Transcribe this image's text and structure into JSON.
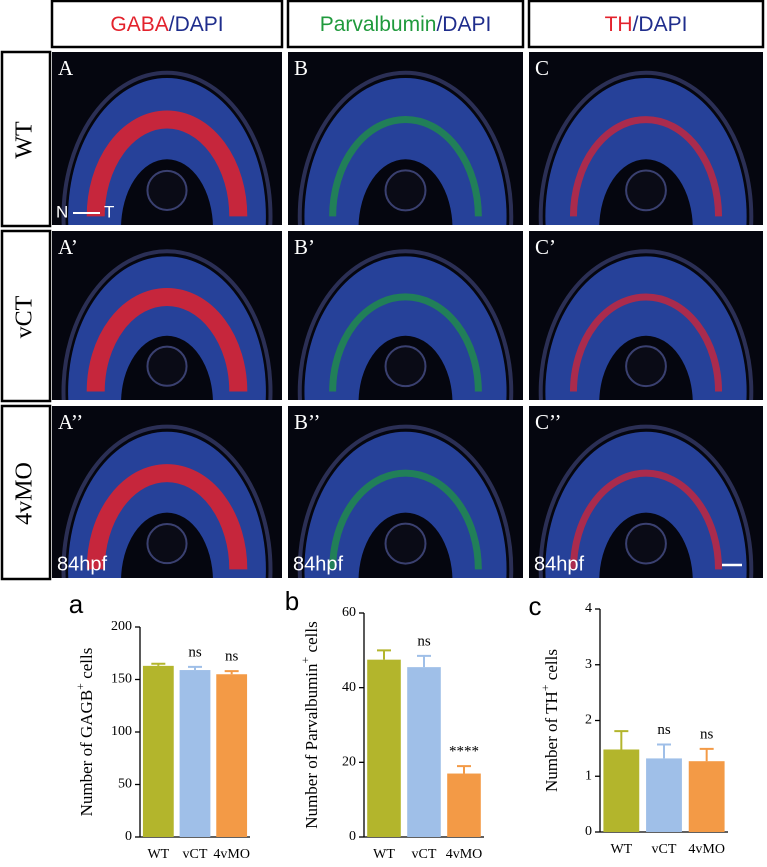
{
  "figure": {
    "column_headers": [
      [
        {
          "text": "GABA",
          "color": "#e3222c"
        },
        {
          "text": "/DAPI",
          "color": "#1f2d8c"
        }
      ],
      [
        {
          "text": "Parvalbumin",
          "color": "#1f9a3c"
        },
        {
          "text": "/DAPI",
          "color": "#1f2d8c"
        }
      ],
      [
        {
          "text": "TH",
          "color": "#e3222c"
        },
        {
          "text": "/DAPI",
          "color": "#1f2d8c"
        }
      ]
    ],
    "row_labels": [
      "WT",
      "vCT",
      "4vMO"
    ],
    "panel_labels": [
      [
        "A",
        "B",
        "C"
      ],
      [
        "A’",
        "B’",
        "C’"
      ],
      [
        "A’’",
        "B’’",
        "C’’"
      ]
    ],
    "orientation": [
      "N",
      "T"
    ],
    "stage_labels": [
      "84hpf",
      "84hpf",
      "84hpf"
    ]
  },
  "chart_data": [
    {
      "type": "bar",
      "label": "a",
      "ylabel": {
        "text": "Number of GAGB",
        "sup": "+",
        "after": " cells"
      },
      "categories": [
        "WT",
        "vCT",
        "4vMO"
      ],
      "values": [
        163,
        159,
        155
      ],
      "errors": [
        2,
        3,
        3
      ],
      "colors": [
        "#b3b52c",
        "#9fbfe8",
        "#f39a46"
      ],
      "annotations": [
        null,
        "ns",
        "ns"
      ],
      "ylim": [
        0,
        200
      ],
      "yticks": [
        0,
        50,
        100,
        150,
        200
      ]
    },
    {
      "type": "bar",
      "label": "b",
      "ylabel": {
        "text": "Number of Parvalbumin",
        "sup": "+",
        "after": " cells"
      },
      "categories": [
        "WT",
        "vCT",
        "4vMO"
      ],
      "values": [
        47.5,
        45.5,
        17
      ],
      "errors": [
        2.5,
        3,
        2
      ],
      "colors": [
        "#b3b52c",
        "#9fbfe8",
        "#f39a46"
      ],
      "annotations": [
        null,
        "ns",
        "****"
      ],
      "ylim": [
        0,
        60
      ],
      "yticks": [
        0,
        20,
        40,
        60
      ]
    },
    {
      "type": "bar",
      "label": "c",
      "ylabel": {
        "text": "Number of TH",
        "sup": "+",
        "after": " cells"
      },
      "categories": [
        "WT",
        "vCT",
        "4vMO"
      ],
      "values": [
        1.48,
        1.32,
        1.27
      ],
      "errors": [
        0.33,
        0.25,
        0.22
      ],
      "colors": [
        "#b3b52c",
        "#9fbfe8",
        "#f39a46"
      ],
      "annotations": [
        null,
        "ns",
        "ns"
      ],
      "ylim": [
        0,
        4
      ],
      "yticks": [
        0,
        1,
        2,
        3,
        4
      ]
    }
  ]
}
